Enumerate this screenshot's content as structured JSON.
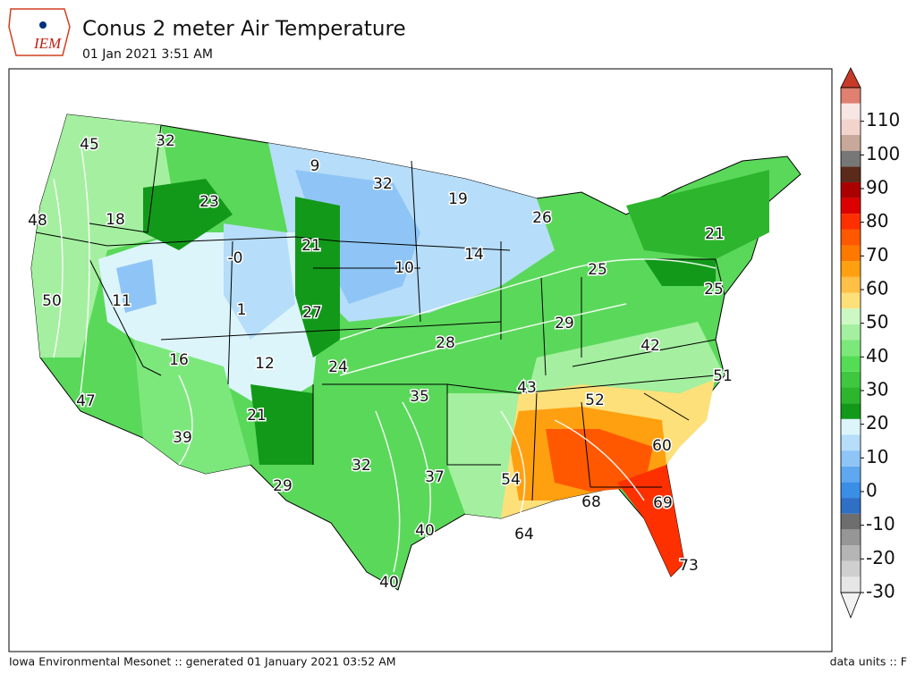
{
  "header": {
    "logo": "IEM",
    "title": "Conus 2 meter Air Temperature",
    "subtitle": "01 Jan 2021 3:51 AM"
  },
  "map": {
    "labels": [
      "45",
      "32",
      "9",
      "32",
      "19",
      "26",
      "23",
      "18",
      "48",
      "21",
      "-0",
      "10",
      "14",
      "21",
      "25",
      "25",
      "50",
      "11",
      "1",
      "27",
      "29",
      "28",
      "42",
      "16",
      "12",
      "24",
      "51",
      "43",
      "35",
      "52",
      "47",
      "21",
      "39",
      "60",
      "32",
      "37",
      "54",
      "29",
      "68",
      "69",
      "64",
      "40",
      "73",
      "40"
    ]
  },
  "colorbar": {
    "lim": [
      -30,
      120
    ],
    "ticks": [
      -30,
      -20,
      -10,
      0,
      10,
      20,
      30,
      40,
      50,
      60,
      70,
      80,
      90,
      100,
      110
    ],
    "colors": [
      "#e6e6e6",
      "#cfcfcf",
      "#b5b5b5",
      "#969696",
      "#6e6e6e",
      "#2f6fc4",
      "#3a8ee6",
      "#5fa8f0",
      "#8ec5f6",
      "#b6ddf9",
      "#dcf5fb",
      "#13991a",
      "#2db52d",
      "#3fc83f",
      "#55dc55",
      "#7ce87c",
      "#a4f0a0",
      "#ccf8c4",
      "#fde07a",
      "#ffc048",
      "#ffa010",
      "#ff7800",
      "#ff5800",
      "#ff3000",
      "#dd0000",
      "#aa0000",
      "#5a2a1a",
      "#777777",
      "#c8a898",
      "#f2d4cc",
      "#f6e6e4",
      "#e08070"
    ]
  },
  "footer": {
    "left": "Iowa Environmental Mesonet :: generated 01 January 2021 03:52 AM",
    "right": "data units :: F"
  }
}
